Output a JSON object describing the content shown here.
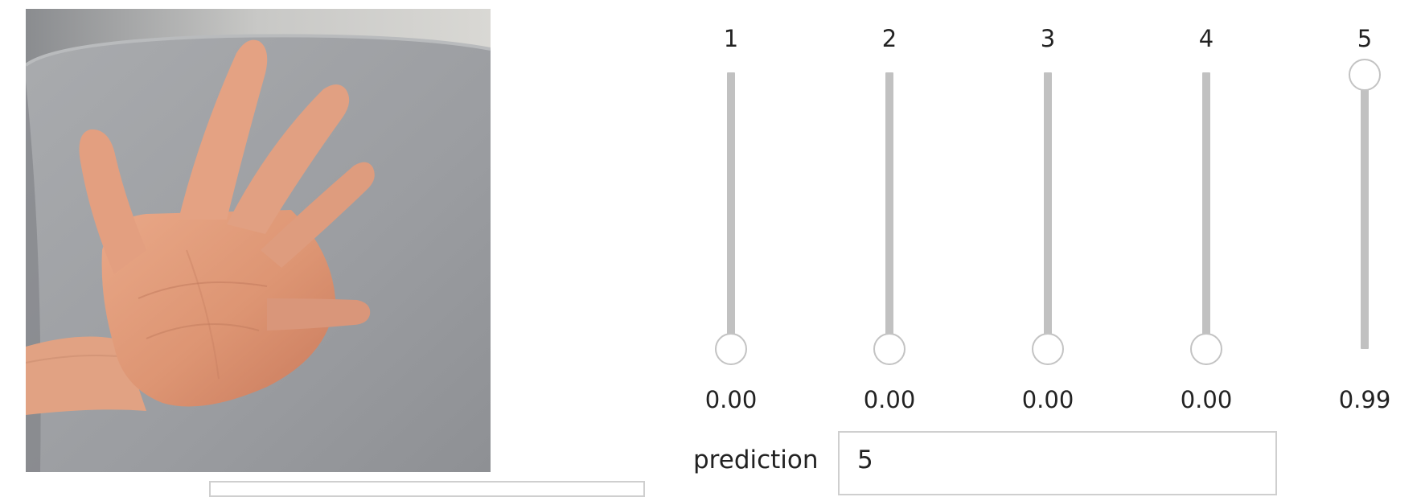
{
  "photo": {
    "subject_icon": "open-hand-five-fingers-icon"
  },
  "sliders": [
    {
      "label": "1",
      "value": 0.0,
      "value_text": "0.00"
    },
    {
      "label": "2",
      "value": 0.0,
      "value_text": "0.00"
    },
    {
      "label": "3",
      "value": 0.0,
      "value_text": "0.00"
    },
    {
      "label": "4",
      "value": 0.0,
      "value_text": "0.00"
    },
    {
      "label": "5",
      "value": 0.99,
      "value_text": "0.99"
    }
  ],
  "prediction": {
    "label": "prediction",
    "value": "5"
  },
  "colors": {
    "track": "#c1c1c1",
    "thumb_border": "#c3c3c3",
    "text": "#222222",
    "box_border": "#cfcfcf"
  }
}
